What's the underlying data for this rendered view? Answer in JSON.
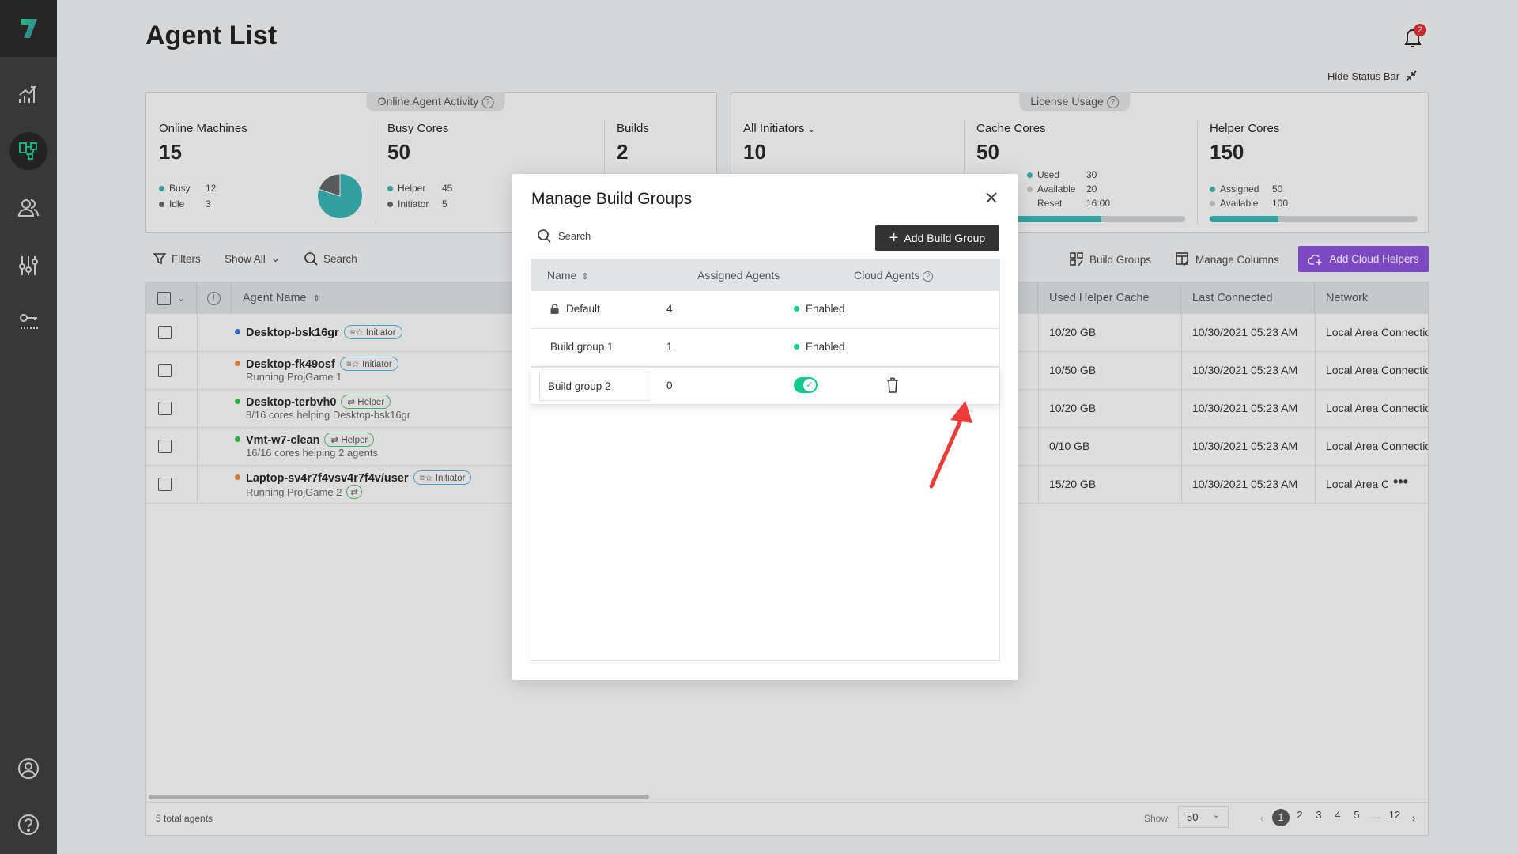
{
  "page": {
    "title": "Agent List",
    "notification_count": "2",
    "hide_status_bar": "Hide Status Bar"
  },
  "sidebar": {
    "items": [
      {
        "name": "analytics"
      },
      {
        "name": "agents",
        "active": true
      },
      {
        "name": "users"
      },
      {
        "name": "settings"
      },
      {
        "name": "license"
      }
    ]
  },
  "online_activity": {
    "title": "Online Agent Activity",
    "online_machines": {
      "label": "Online Machines",
      "value": "15",
      "legend": [
        {
          "label": "Busy",
          "value": "12",
          "color": "#36b3b3"
        },
        {
          "label": "Idle",
          "value": "3",
          "color": "#5f6163"
        }
      ]
    },
    "busy_cores": {
      "label": "Busy Cores",
      "value": "50",
      "legend": [
        {
          "label": "Helper",
          "value": "45"
        },
        {
          "label": "Initiator",
          "value": "5"
        }
      ]
    },
    "builds": {
      "label": "Builds",
      "value": "2"
    }
  },
  "license_usage": {
    "title": "License Usage",
    "initiators": {
      "label": "All Initiators",
      "value": "10"
    },
    "cache_cores": {
      "label": "Cache Cores",
      "value": "50",
      "legend": [
        {
          "label": "Used",
          "value": "30"
        },
        {
          "label": "Available",
          "value": "20"
        },
        {
          "label": "Reset",
          "value": "16:00"
        }
      ],
      "used_fraction": 0.6
    },
    "helper_cores": {
      "label": "Helper Cores",
      "value": "150",
      "legend": [
        {
          "label": "Assigned",
          "value": "50"
        },
        {
          "label": "Available",
          "value": "100"
        }
      ],
      "used_fraction": 0.33
    }
  },
  "toolbar": {
    "filters": "Filters",
    "show_all": "Show All",
    "search": "Search",
    "build_groups": "Build Groups",
    "manage_columns": "Manage Columns",
    "add_cloud_helpers": "Add Cloud Helpers"
  },
  "table": {
    "columns": {
      "agent_name": "Agent Name",
      "used_helper_cache": "Used Helper Cache",
      "last_connected": "Last Connected",
      "network": "Network"
    },
    "rows": [
      {
        "name": "Desktop-bsk16gr",
        "status_color": "#2f6fd6",
        "role": "Initiator",
        "sub": "",
        "cache": "10/20 GB",
        "last": "10/30/2021 05:23 AM",
        "network": "Local Area Connection"
      },
      {
        "name": "Desktop-fk49osf",
        "status_color": "#e88b3a",
        "role": "Initiator",
        "sub": "Running ProjGame 1",
        "cache": "10/50 GB",
        "last": "10/30/2021 05:23 AM",
        "network": "Local Area Connection"
      },
      {
        "name": "Desktop-terbvh0",
        "status_color": "#2fbf3f",
        "role": "Helper",
        "sub": "8/16 cores helping Desktop-bsk16gr",
        "cache": "10/20 GB",
        "last": "10/30/2021 05:23 AM",
        "network": "Local Area Connection"
      },
      {
        "name": "Vmt-w7-clean",
        "status_color": "#2fbf3f",
        "role": "Helper",
        "sub": "16/16 cores helping 2 agents",
        "cache": "0/10 GB",
        "last": "10/30/2021 05:23 AM",
        "network": "Local Area Connection"
      },
      {
        "name": "Laptop-sv4r7f4vsv4r7f4v/user",
        "status_color": "#e88b3a",
        "role": "Initiator",
        "sub": "Running ProjGame 2",
        "cache": "15/20 GB",
        "last": "10/30/2021 05:23 AM",
        "network": "Local Area Connection"
      }
    ],
    "total": "5 total agents",
    "show_label": "Show:",
    "page_size": "50",
    "pages": [
      "1",
      "2",
      "3",
      "4",
      "5",
      "...",
      "12"
    ],
    "current_page": "1"
  },
  "modal": {
    "title": "Manage Build Groups",
    "search_placeholder": "Search",
    "add_button": "Add Build Group",
    "columns": {
      "name": "Name",
      "assigned": "Assigned Agents",
      "cloud": "Cloud Agents"
    },
    "rows": [
      {
        "name": "Default",
        "assigned": "4",
        "cloud": "Enabled",
        "locked": true
      },
      {
        "name": "Build group 1",
        "assigned": "1",
        "cloud": "Enabled"
      },
      {
        "name": "Build group 2",
        "assigned": "0",
        "cloud_toggle": true,
        "editing": true
      }
    ],
    "accent": "#13c98f"
  }
}
